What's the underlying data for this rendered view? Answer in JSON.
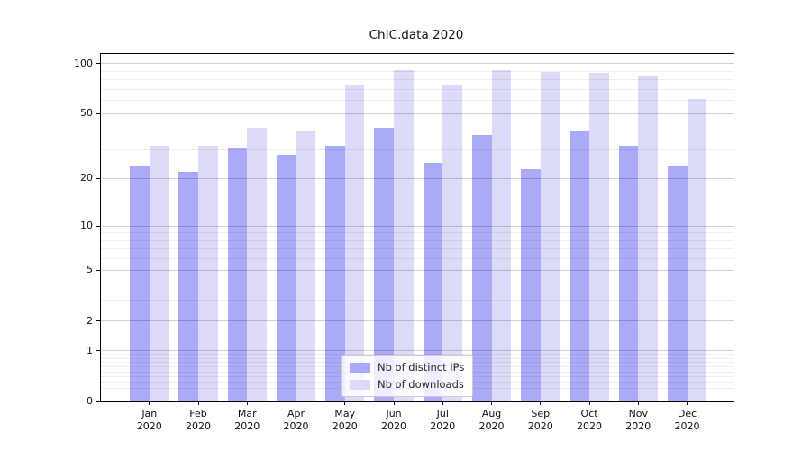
{
  "figure": {
    "background": "#ffffff"
  },
  "chart_data": {
    "type": "bar",
    "title": "ChIC.data 2020",
    "categories": [
      "Jan 2020",
      "Feb 2020",
      "Mar 2020",
      "Apr 2020",
      "May 2020",
      "Jun 2020",
      "Jul 2020",
      "Aug 2020",
      "Sep 2020",
      "Oct 2020",
      "Nov 2020",
      "Dec 2020"
    ],
    "series": [
      {
        "name": "Nb of distinct IPs",
        "color": "#aaaaf8",
        "values": [
          24,
          22,
          31,
          28,
          32,
          41,
          25,
          37,
          23,
          39,
          32,
          24
        ]
      },
      {
        "name": "Nb of downloads",
        "color": "#dbdbf9",
        "values": [
          32,
          32,
          41,
          39,
          75,
          92,
          74,
          91,
          89,
          88,
          84,
          61
        ]
      }
    ],
    "xlabel": "",
    "ylabel": "",
    "yscale": "symlog",
    "ylim": [
      0,
      113
    ],
    "yticks": [
      100,
      50,
      20,
      10,
      5,
      2,
      1,
      0
    ],
    "grid": "on",
    "gridlines_above_bars": true,
    "legend_position": "lower center",
    "bar_group_gap_ratio": 0.2
  }
}
